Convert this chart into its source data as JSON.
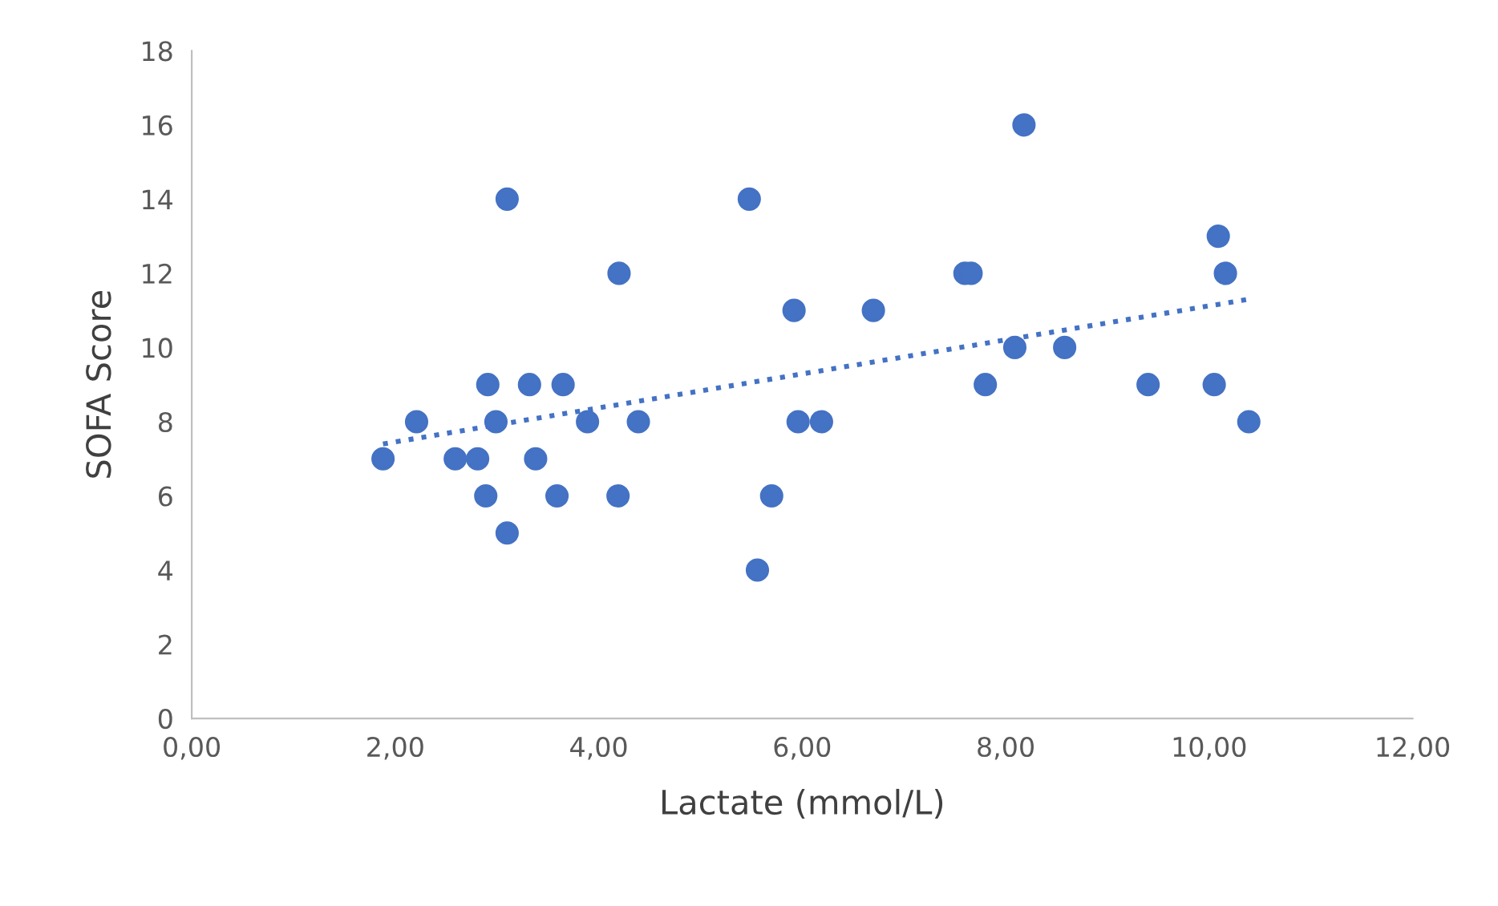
{
  "chart_data": {
    "type": "scatter",
    "xlabel": "Lactate (mmol/L)",
    "ylabel": "SOFA Score",
    "xlim": [
      0,
      12
    ],
    "ylim": [
      0,
      18
    ],
    "xticks": [
      {
        "value": 0,
        "label": "0,00"
      },
      {
        "value": 2,
        "label": "2,00"
      },
      {
        "value": 4,
        "label": "4,00"
      },
      {
        "value": 6,
        "label": "6,00"
      },
      {
        "value": 8,
        "label": "8,00"
      },
      {
        "value": 10,
        "label": "10,00"
      },
      {
        "value": 12,
        "label": "12,00"
      }
    ],
    "yticks": [
      0,
      2,
      4,
      6,
      8,
      10,
      12,
      14,
      16,
      18
    ],
    "grid": false,
    "legend": false,
    "series": [
      {
        "color": "#4472c4",
        "marker": "circle",
        "x": [
          1.88,
          2.21,
          2.59,
          2.81,
          2.89,
          2.91,
          2.99,
          3.1,
          3.1,
          3.32,
          3.38,
          3.59,
          3.65,
          3.89,
          4.2,
          4.19,
          4.39,
          5.48,
          5.56,
          5.7,
          5.92,
          5.96,
          6.19,
          6.7,
          7.6,
          7.66,
          7.8,
          8.09,
          8.18,
          8.58,
          9.4,
          10.05,
          10.09,
          10.16,
          10.39
        ],
        "values": [
          7,
          8,
          7,
          7,
          6,
          9,
          8,
          14,
          5,
          9,
          7,
          6,
          9,
          8,
          12,
          6,
          8,
          14,
          4,
          6,
          11,
          8,
          8,
          11,
          12,
          12,
          9,
          10,
          16,
          10,
          9,
          9,
          13,
          12,
          8
        ]
      },
      {
        "type": "line",
        "color": "#4472c4",
        "line_style": "dotted",
        "marker": "none",
        "x": [
          1.88,
          10.39
        ],
        "values": [
          7.4,
          11.3
        ]
      }
    ]
  }
}
